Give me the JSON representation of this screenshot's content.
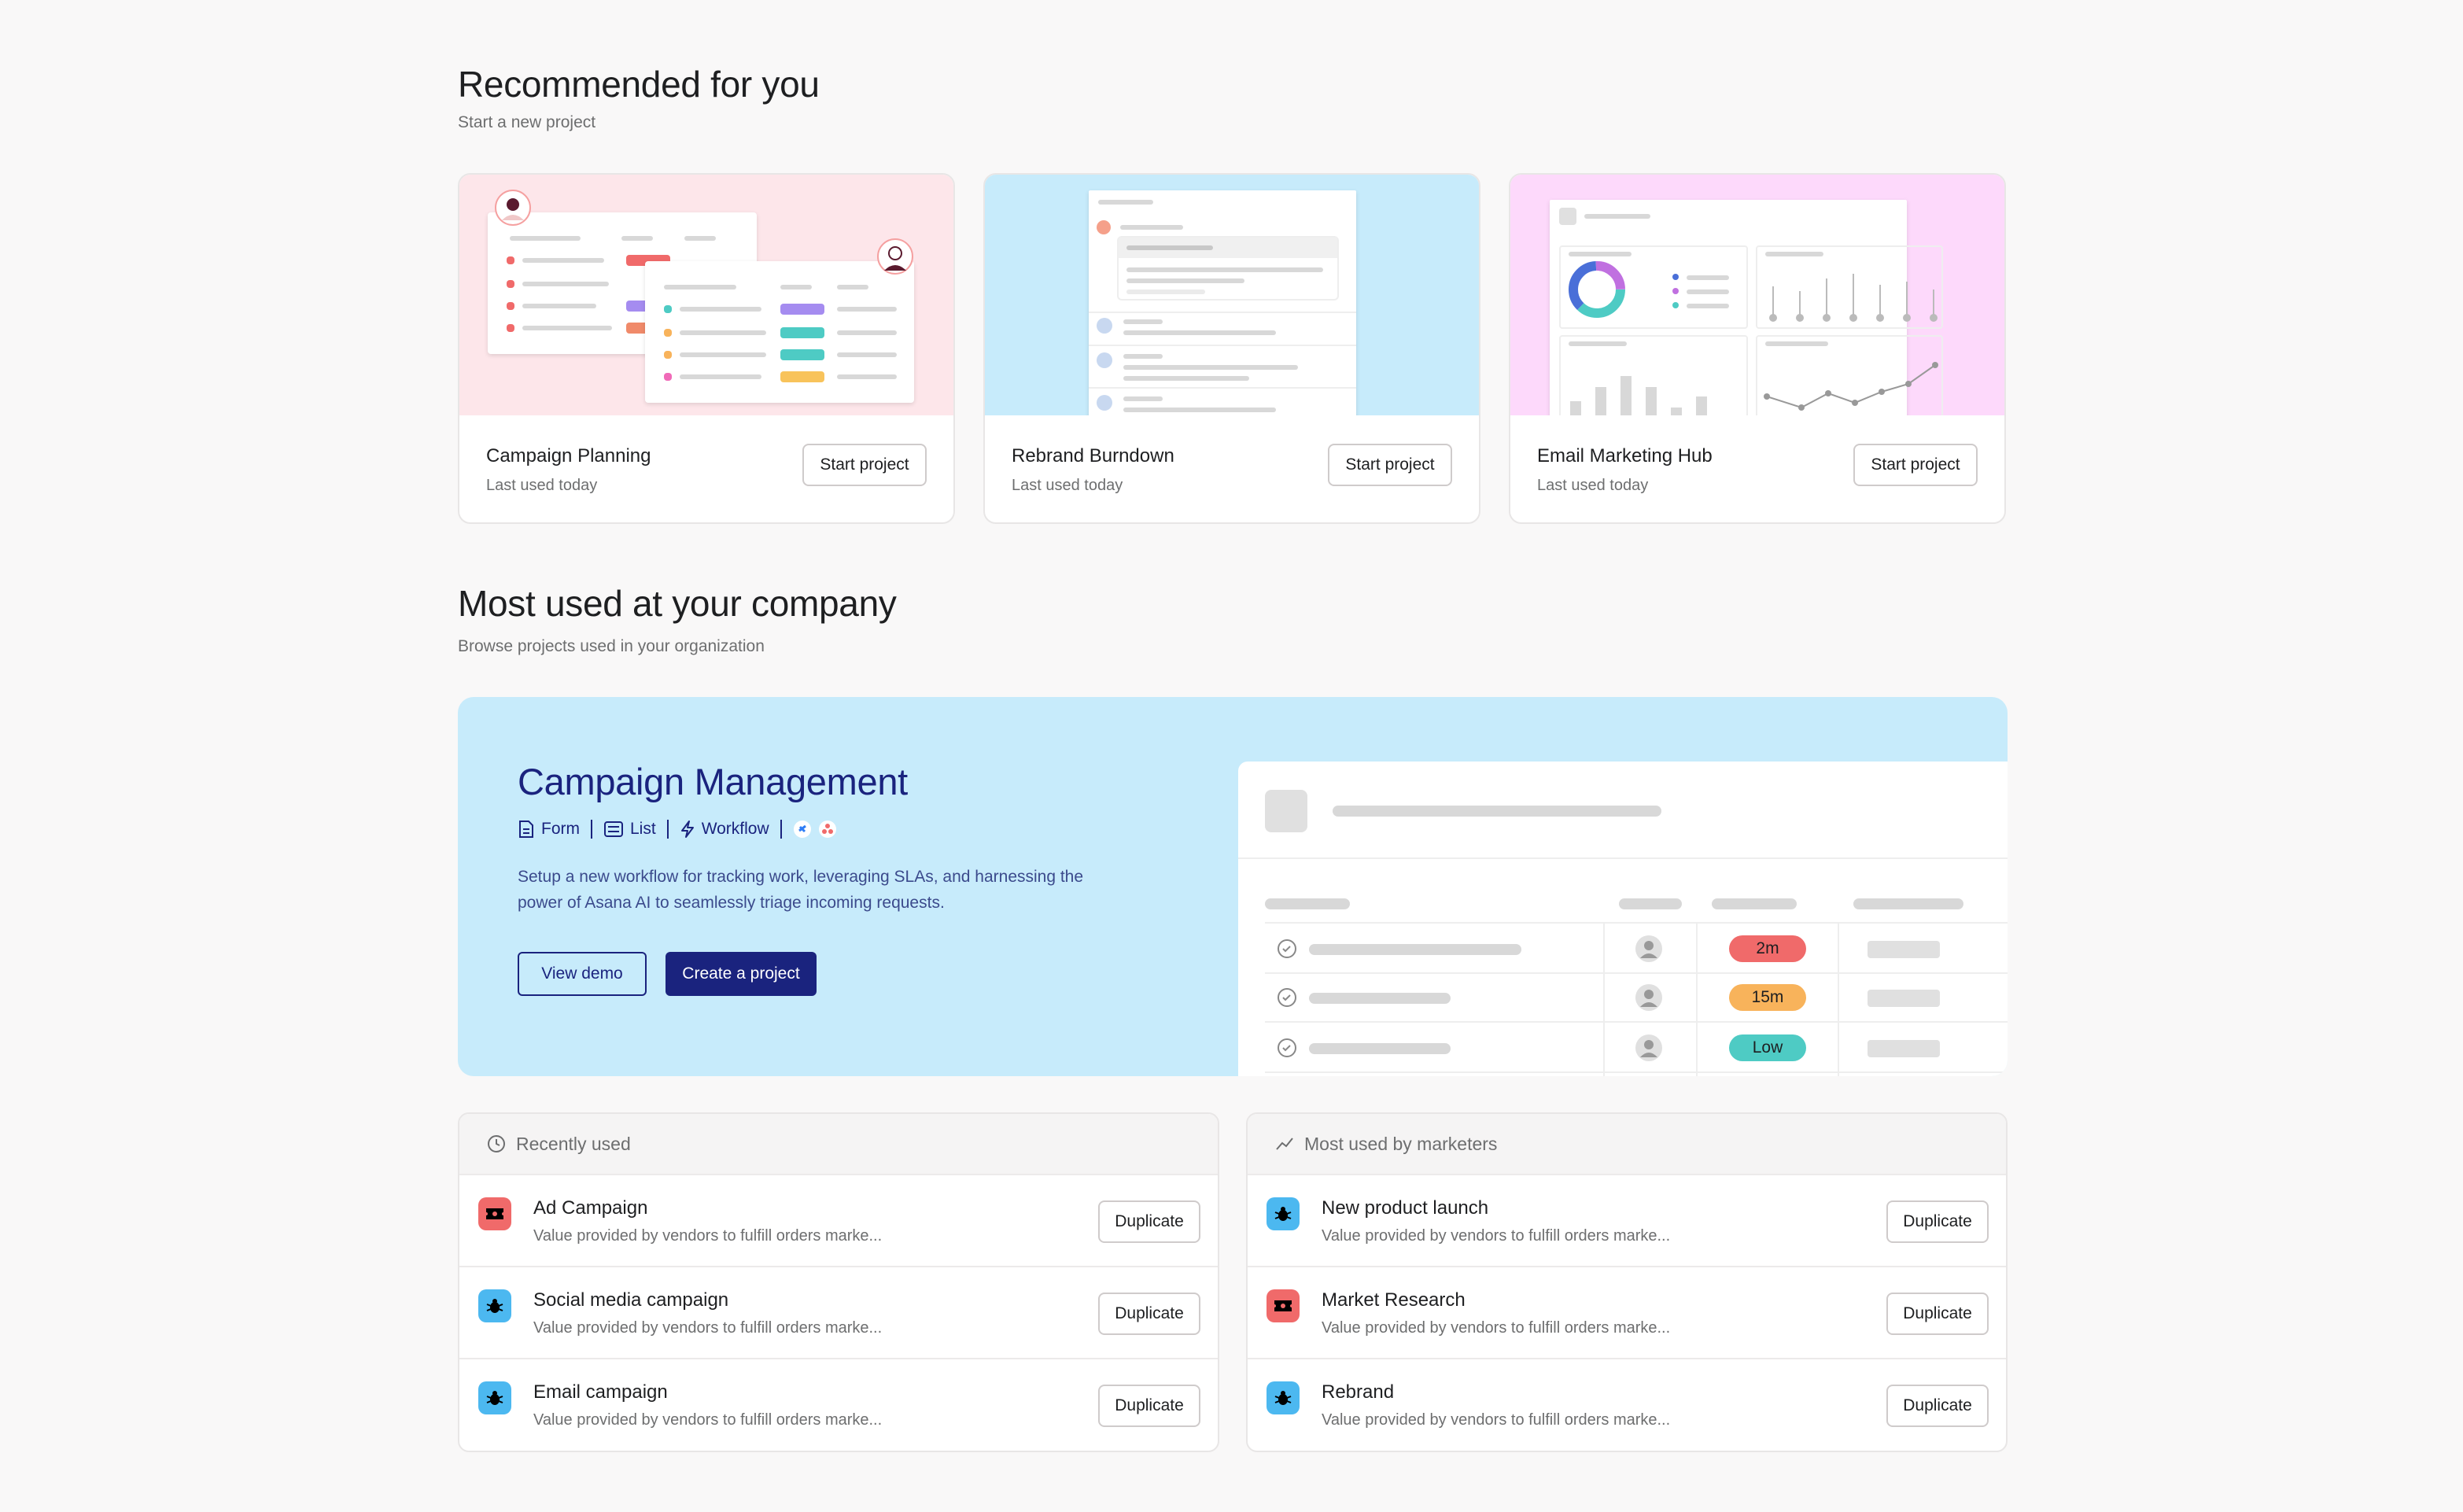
{
  "recommended": {
    "title": "Recommended for you",
    "subtitle": "Start a new project",
    "cards": [
      {
        "title": "Campaign Planning",
        "subtitle": "Last used today",
        "button": "Start project",
        "bg": "#fde6ea"
      },
      {
        "title": "Rebrand Burndown",
        "subtitle": "Last used today",
        "button": "Start project",
        "bg": "#c7ebfb"
      },
      {
        "title": "Email Marketing Hub",
        "subtitle": "Last used today",
        "button": "Start project",
        "bg": "#fdd9fb"
      }
    ]
  },
  "most_used": {
    "title": "Most used at your company",
    "subtitle": "Browse projects used in your organization"
  },
  "feature": {
    "title": "Campaign Management",
    "meta": [
      "Form",
      "List",
      "Workflow"
    ],
    "description": "Setup a new workflow for tracking work, leveraging SLAs, and harnessing the power of Asana AI to seamlessly triage incoming requests.",
    "view_demo": "View demo",
    "create": "Create a project",
    "chips": [
      {
        "label": "2m",
        "color": "#f06a6a"
      },
      {
        "label": "15m",
        "color": "#f8b35b"
      },
      {
        "label": "Low",
        "color": "#4ecbc4"
      }
    ]
  },
  "recently_used": {
    "header": "Recently used",
    "items": [
      {
        "title": "Ad Campaign",
        "subtitle": "Value provided by vendors to fulfill orders marke...",
        "button": "Duplicate",
        "icon": "ticket-icon",
        "color": "#f06a6a"
      },
      {
        "title": "Social media campaign",
        "subtitle": "Value provided by vendors to fulfill orders marke...",
        "button": "Duplicate",
        "icon": "bug-icon",
        "color": "#4cb8f0"
      },
      {
        "title": "Email campaign",
        "subtitle": "Value provided by vendors to fulfill orders marke...",
        "button": "Duplicate",
        "icon": "bug-icon",
        "color": "#4cb8f0"
      }
    ]
  },
  "marketers": {
    "header": "Most used by marketers",
    "items": [
      {
        "title": "New product launch",
        "subtitle": "Value provided by vendors to fulfill orders marke...",
        "button": "Duplicate",
        "icon": "bug-icon",
        "color": "#4cb8f0"
      },
      {
        "title": "Market Research",
        "subtitle": "Value provided by vendors to fulfill orders marke...",
        "button": "Duplicate",
        "icon": "ticket-icon",
        "color": "#f06a6a"
      },
      {
        "title": "Rebrand",
        "subtitle": "Value provided by vendors to fulfill orders marke...",
        "button": "Duplicate",
        "icon": "bug-icon",
        "color": "#4cb8f0"
      }
    ]
  }
}
